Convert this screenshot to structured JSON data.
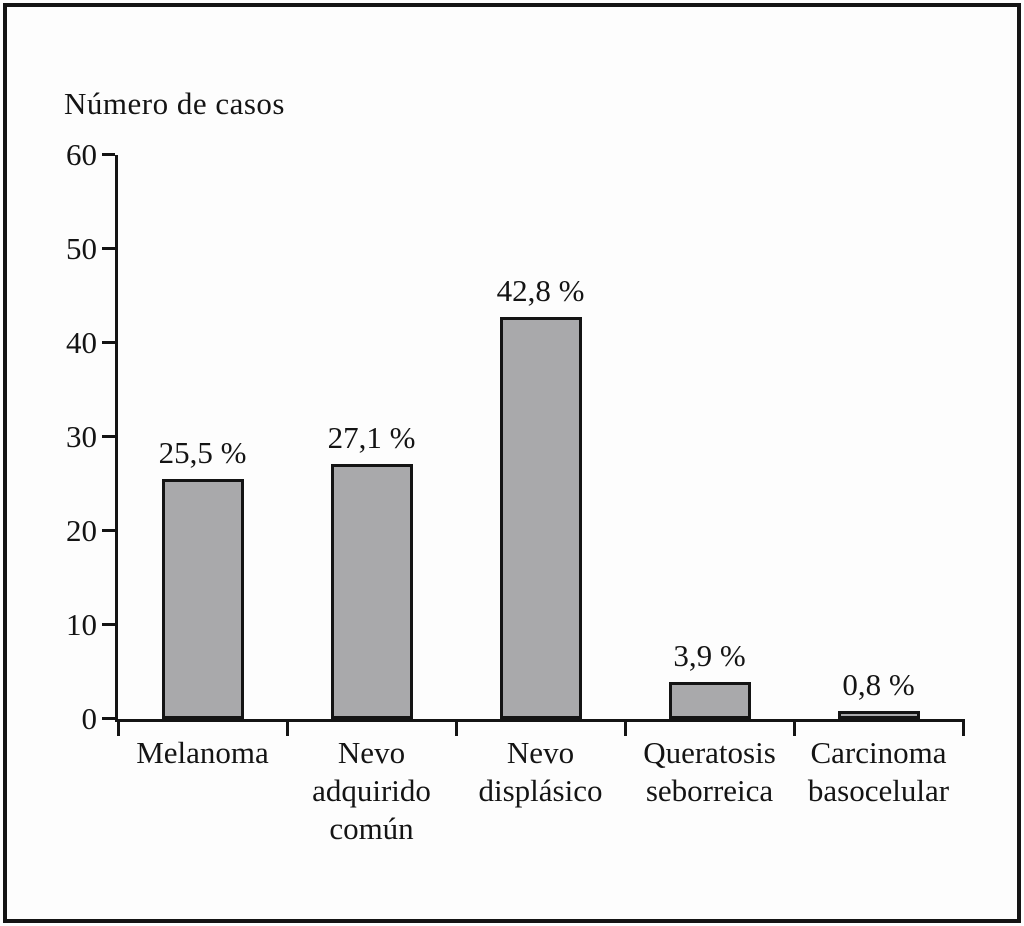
{
  "chart_data": {
    "type": "bar",
    "title": "Número de casos",
    "ylabel": "Número de casos",
    "xlabel": "",
    "categories": [
      "Melanoma",
      "Nevo adquirido común",
      "Nevo displásico",
      "Queratosis seborreica",
      "Carcinoma basocelular"
    ],
    "category_lines": [
      [
        "Melanoma"
      ],
      [
        "Nevo",
        "adquirido",
        "común"
      ],
      [
        "Nevo",
        "displásico"
      ],
      [
        "Queratosis",
        "seborreica"
      ],
      [
        "Carcinoma",
        "basocelular"
      ]
    ],
    "values": [
      25.5,
      27.1,
      42.8,
      3.9,
      0.8
    ],
    "value_labels": [
      "25,5 %",
      "27,1 %",
      "42,8 %",
      "3,9 %",
      "0,8 %"
    ],
    "ylim": [
      0,
      60
    ],
    "yticks": [
      0,
      10,
      20,
      30,
      40,
      50,
      60
    ],
    "ytick_labels": [
      "0",
      "10",
      "20",
      "30",
      "40",
      "50",
      "60"
    ],
    "grid": false,
    "legend": null,
    "colors": {
      "bar_fill": "#a9a9ab",
      "bar_border": "#141414",
      "axis": "#141414",
      "text": "#141414",
      "background": "#fdfdfd"
    }
  }
}
